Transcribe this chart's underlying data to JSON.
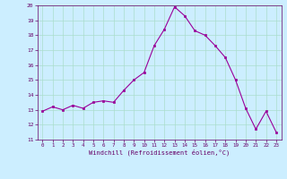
{
  "x": [
    0,
    1,
    2,
    3,
    4,
    5,
    6,
    7,
    8,
    9,
    10,
    11,
    12,
    13,
    14,
    15,
    16,
    17,
    18,
    19,
    20,
    21,
    22,
    23
  ],
  "y": [
    12.9,
    13.2,
    13.0,
    13.3,
    13.1,
    13.5,
    13.6,
    13.5,
    14.3,
    15.0,
    15.5,
    17.3,
    18.4,
    19.9,
    19.3,
    18.3,
    18.0,
    17.3,
    16.5,
    15.0,
    13.1,
    11.7,
    12.9,
    11.5
  ],
  "line_color": "#990099",
  "marker_color": "#990099",
  "bg_color": "#cceeff",
  "grid_color": "#aaddcc",
  "xlabel": "Windchill (Refroidissement éolien,°C)",
  "xlabel_color": "#660066",
  "tick_color": "#660066",
  "ylim": [
    11,
    20
  ],
  "xlim": [
    -0.5,
    23.5
  ],
  "yticks": [
    11,
    12,
    13,
    14,
    15,
    16,
    17,
    18,
    19,
    20
  ],
  "xticks": [
    0,
    1,
    2,
    3,
    4,
    5,
    6,
    7,
    8,
    9,
    10,
    11,
    12,
    13,
    14,
    15,
    16,
    17,
    18,
    19,
    20,
    21,
    22,
    23
  ]
}
